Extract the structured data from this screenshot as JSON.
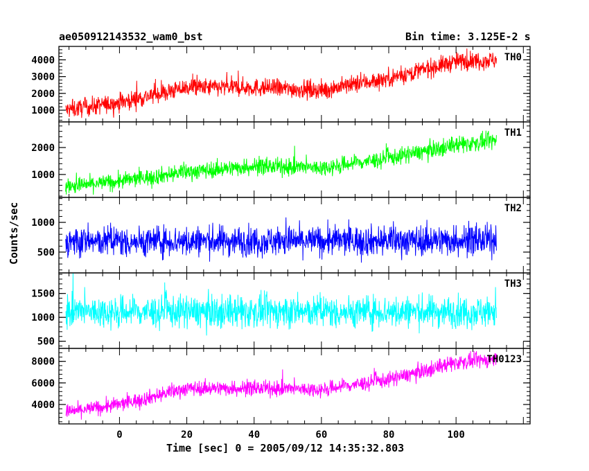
{
  "header": {
    "obs_id": "ae050912143532_wam0_bst",
    "bin_time": "Bin time: 3.125E-2 s"
  },
  "chart_data": {
    "type": "line",
    "xlabel": "Time [sec] 0 = 2005/09/12 14:35:32.803",
    "ylabel": "Counts/sec",
    "xlim": [
      -18,
      122
    ],
    "x_range": [
      -16,
      112
    ],
    "x_ticks": [
      0,
      20,
      40,
      60,
      80,
      100
    ],
    "panels": [
      {
        "name": "TH0",
        "color": "#ff0000",
        "ylim": [
          300,
          4800
        ],
        "yticks": [
          1000,
          2000,
          3000,
          4000
        ],
        "trend_x": [
          -16,
          0,
          20,
          40,
          60,
          80,
          100,
          112
        ],
        "trend_y": [
          1000,
          1450,
          2350,
          2350,
          2200,
          2900,
          3900,
          4000
        ],
        "noise": 700
      },
      {
        "name": "TH1",
        "color": "#00ff00",
        "ylim": [
          150,
          2950
        ],
        "yticks": [
          1000,
          2000
        ],
        "trend_x": [
          -16,
          0,
          20,
          40,
          60,
          80,
          100,
          112
        ],
        "trend_y": [
          550,
          750,
          1100,
          1300,
          1250,
          1600,
          2100,
          2250
        ],
        "noise": 400
      },
      {
        "name": "TH2",
        "color": "#0000ff",
        "ylim": [
          150,
          1420
        ],
        "yticks": [
          500,
          1000
        ],
        "trend_x": [
          -16,
          112
        ],
        "trend_y": [
          680,
          700
        ],
        "noise": 330
      },
      {
        "name": "TH3",
        "color": "#00ffff",
        "ylim": [
          350,
          1930
        ],
        "yticks": [
          500,
          1000,
          1500
        ],
        "trend_x": [
          -16,
          112
        ],
        "trend_y": [
          1120,
          1120
        ],
        "noise": 430
      },
      {
        "name": "TH0123",
        "color": "#ff00ff",
        "ylim": [
          2200,
          9200
        ],
        "yticks": [
          4000,
          6000,
          8000
        ],
        "trend_x": [
          -16,
          0,
          20,
          40,
          60,
          80,
          100,
          112
        ],
        "trend_y": [
          3300,
          4000,
          5500,
          5500,
          5400,
          6300,
          7900,
          8200
        ],
        "noise": 900
      }
    ]
  }
}
